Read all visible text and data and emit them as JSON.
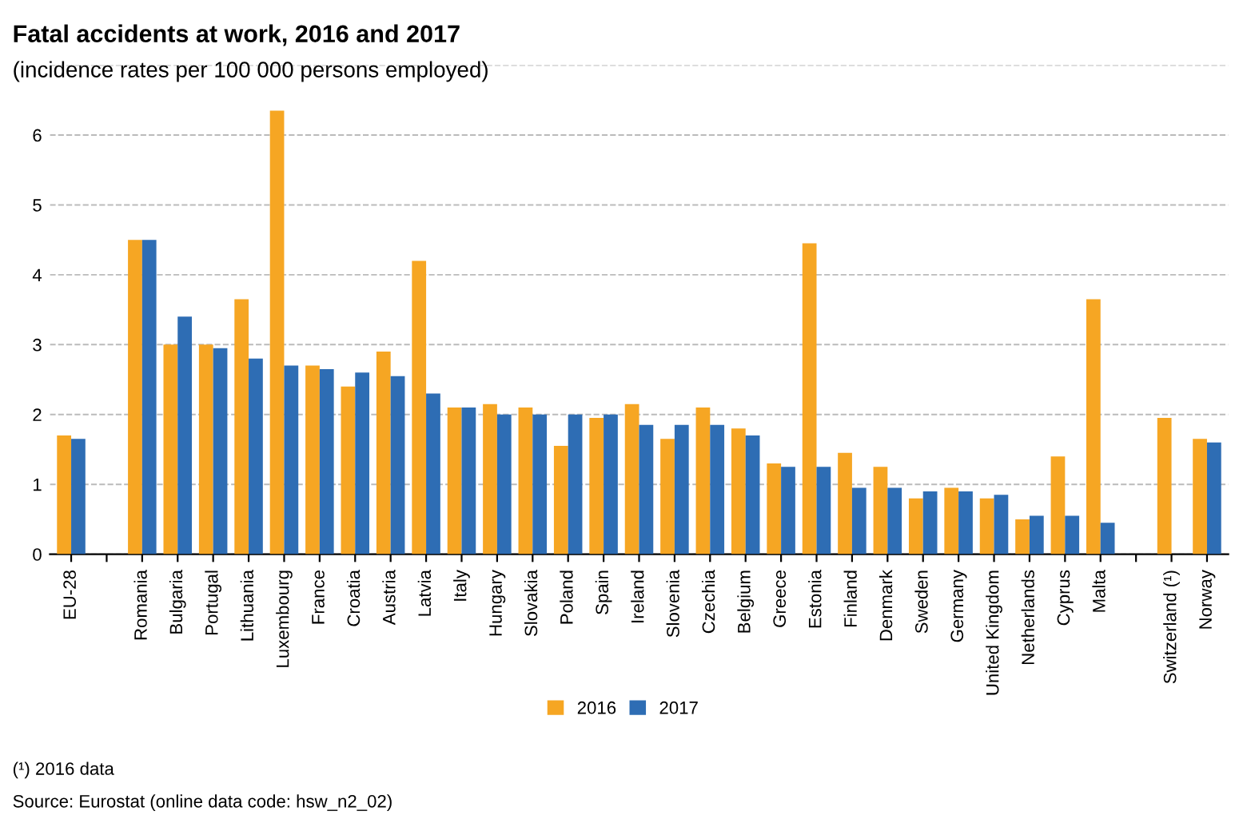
{
  "chart_data": {
    "type": "bar",
    "title": "Fatal accidents at work, 2016 and 2017",
    "subtitle": "(incidence rates per 100 000 persons employed)",
    "categories": [
      "EU-28",
      null,
      "Romania",
      "Bulgaria",
      "Portugal",
      "Lithuania",
      "Luxembourg",
      "France",
      "Croatia",
      "Austria",
      "Latvia",
      "Italy",
      "Hungary",
      "Slovakia",
      "Poland",
      "Spain",
      "Ireland",
      "Slovenia",
      "Czechia",
      "Belgium",
      "Greece",
      "Estonia",
      "Finland",
      "Denmark",
      "Sweden",
      "Germany",
      "United Kingdom",
      "Netherlands",
      "Cyprus",
      "Malta",
      null,
      "Switzerland (¹)",
      "Norway"
    ],
    "series": [
      {
        "name": "2016",
        "color": "#f6a623",
        "values": [
          1.7,
          null,
          4.5,
          3.0,
          3.0,
          3.65,
          6.35,
          2.7,
          2.4,
          2.9,
          4.2,
          2.1,
          2.15,
          2.1,
          1.55,
          1.95,
          2.15,
          1.65,
          2.1,
          1.8,
          1.3,
          4.45,
          1.45,
          1.25,
          0.8,
          0.95,
          0.8,
          0.5,
          1.4,
          3.65,
          null,
          1.95,
          1.65
        ]
      },
      {
        "name": "2017",
        "color": "#2e6db4",
        "values": [
          1.65,
          null,
          4.5,
          3.4,
          2.95,
          2.8,
          2.7,
          2.65,
          2.6,
          2.55,
          2.3,
          2.1,
          2.0,
          2.0,
          2.0,
          2.0,
          1.85,
          1.85,
          1.85,
          1.7,
          1.25,
          1.25,
          0.95,
          0.95,
          0.9,
          0.9,
          0.85,
          0.55,
          0.55,
          0.45,
          null,
          null,
          1.6
        ]
      }
    ],
    "ylim": [
      0,
      7
    ],
    "yticks": [
      0,
      1,
      2,
      3,
      4,
      5,
      6,
      {
        "value": 7,
        "label": null
      }
    ],
    "grid": "y",
    "legend": "bottom",
    "annotations": [
      "(¹) 2016 data",
      "Source: Eurostat (online data code: hsw_n2_02)"
    ]
  }
}
